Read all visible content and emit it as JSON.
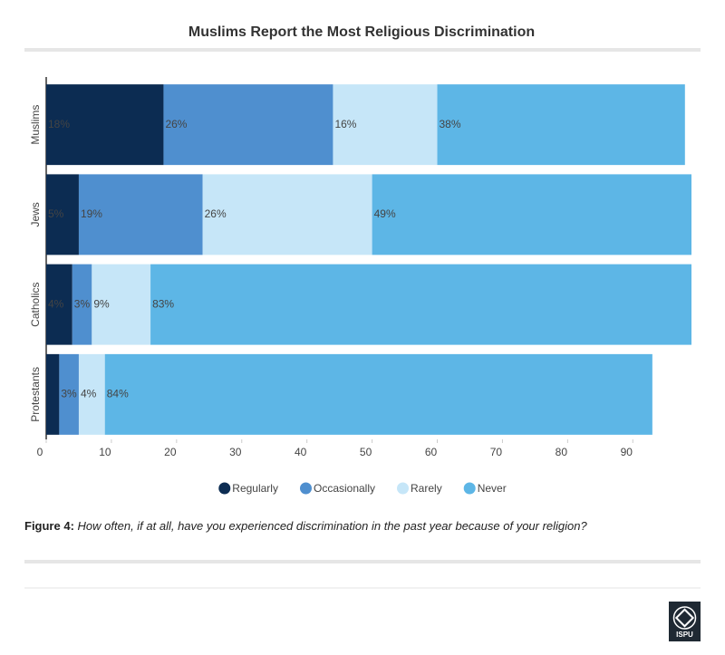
{
  "chart_data": {
    "type": "stacked_barh",
    "title": "Muslims Report the Most Religious Discrimination",
    "categories": [
      "Muslims",
      "Jews",
      "Catholics",
      "Protestants"
    ],
    "series": [
      {
        "name": "Regularly",
        "color": "#0c2c52",
        "values": [
          18,
          5,
          4,
          2
        ],
        "value_labels": [
          "18%",
          "5%",
          "4%",
          null
        ]
      },
      {
        "name": "Occasionally",
        "color": "#4f8fcf",
        "values": [
          26,
          19,
          3,
          3
        ],
        "value_labels": [
          "26%",
          "19%",
          "3%",
          "3%"
        ]
      },
      {
        "name": "Rarely",
        "color": "#c6e6f8",
        "values": [
          16,
          26,
          9,
          4
        ],
        "value_labels": [
          "16%",
          "26%",
          "9%",
          "4%"
        ]
      },
      {
        "name": "Never",
        "color": "#5db6e6",
        "values": [
          38,
          49,
          83,
          84
        ],
        "value_labels": [
          "38%",
          "49%",
          "83%",
          "84%"
        ]
      }
    ],
    "xlim": [
      0,
      99
    ],
    "xticks": [
      0,
      10,
      20,
      30,
      40,
      50,
      60,
      70,
      80,
      90
    ],
    "caption_label": "Figure 4:",
    "caption": "How often, if at all, have you experienced discrimination in the past year because of your religion?",
    "logo": "ISPU"
  }
}
